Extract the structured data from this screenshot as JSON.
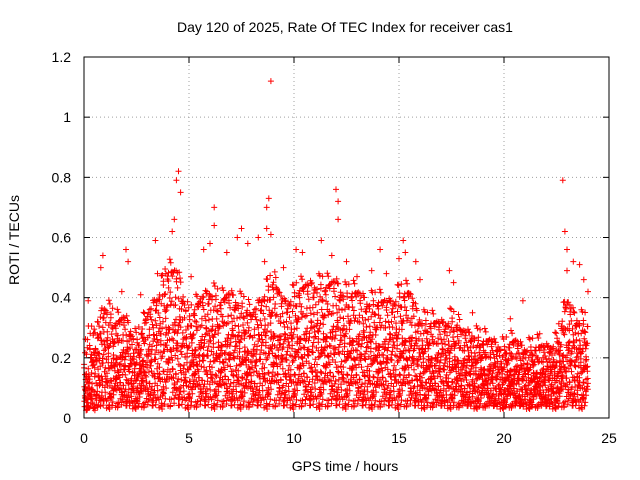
{
  "chart_data": {
    "type": "scatter",
    "title": "Day 120 of 2025, Rate Of TEC Index for receiver cas1",
    "xlabel": "GPS time / hours",
    "ylabel": "ROTI / TECUs",
    "xlim": [
      0,
      25
    ],
    "ylim": [
      0,
      1.2
    ],
    "x_ticks": [
      "0",
      "5",
      "10",
      "15",
      "20",
      "25"
    ],
    "y_ticks": [
      "0",
      "0.2",
      "0.4",
      "0.6",
      "0.8",
      "1",
      "1.2"
    ],
    "x_tick_values": [
      0,
      5,
      10,
      15,
      20,
      25
    ],
    "y_tick_values": [
      0,
      0.2,
      0.4,
      0.6,
      0.8,
      1.0,
      1.2
    ],
    "grid": true,
    "marker": "+",
    "series": [
      {
        "name": "ROTI",
        "color": "#ff0000",
        "profile_hours": [
          0,
          0.5,
          1,
          1.5,
          2,
          2.5,
          3,
          3.5,
          4,
          4.5,
          5,
          5.5,
          6,
          6.5,
          7,
          7.5,
          8,
          8.5,
          9,
          9.5,
          10,
          10.5,
          11,
          11.5,
          12,
          12.5,
          13,
          13.5,
          14,
          14.5,
          15,
          15.5,
          16,
          16.5,
          17,
          17.5,
          18,
          18.5,
          19,
          19.5,
          20,
          20.5,
          21,
          21.5,
          22,
          22.5,
          23,
          23.5,
          24
        ],
        "profile_typical_max": [
          0.25,
          0.28,
          0.35,
          0.28,
          0.3,
          0.22,
          0.3,
          0.38,
          0.45,
          0.45,
          0.3,
          0.35,
          0.4,
          0.35,
          0.38,
          0.35,
          0.3,
          0.38,
          0.42,
          0.35,
          0.38,
          0.4,
          0.42,
          0.4,
          0.42,
          0.38,
          0.38,
          0.36,
          0.35,
          0.35,
          0.38,
          0.38,
          0.3,
          0.28,
          0.28,
          0.3,
          0.25,
          0.25,
          0.22,
          0.22,
          0.2,
          0.22,
          0.2,
          0.2,
          0.2,
          0.22,
          0.35,
          0.3,
          0.28
        ],
        "peaks": [
          {
            "x": 0.2,
            "y": 0.39
          },
          {
            "x": 0.9,
            "y": 0.54
          },
          {
            "x": 0.8,
            "y": 0.5
          },
          {
            "x": 1.8,
            "y": 0.42
          },
          {
            "x": 2.0,
            "y": 0.56
          },
          {
            "x": 2.1,
            "y": 0.52
          },
          {
            "x": 2.7,
            "y": 0.41
          },
          {
            "x": 3.4,
            "y": 0.59
          },
          {
            "x": 3.5,
            "y": 0.48
          },
          {
            "x": 3.9,
            "y": 0.48
          },
          {
            "x": 4.2,
            "y": 0.62
          },
          {
            "x": 4.3,
            "y": 0.66
          },
          {
            "x": 4.4,
            "y": 0.79
          },
          {
            "x": 4.5,
            "y": 0.82
          },
          {
            "x": 4.6,
            "y": 0.75
          },
          {
            "x": 5.1,
            "y": 0.47
          },
          {
            "x": 5.7,
            "y": 0.56
          },
          {
            "x": 6.0,
            "y": 0.58
          },
          {
            "x": 6.2,
            "y": 0.7
          },
          {
            "x": 6.2,
            "y": 0.64
          },
          {
            "x": 6.8,
            "y": 0.55
          },
          {
            "x": 7.3,
            "y": 0.6
          },
          {
            "x": 7.5,
            "y": 0.63
          },
          {
            "x": 7.8,
            "y": 0.58
          },
          {
            "x": 8.3,
            "y": 0.6
          },
          {
            "x": 8.6,
            "y": 0.52
          },
          {
            "x": 8.8,
            "y": 0.73
          },
          {
            "x": 8.7,
            "y": 0.7
          },
          {
            "x": 8.9,
            "y": 0.61
          },
          {
            "x": 8.7,
            "y": 0.63
          },
          {
            "x": 9.5,
            "y": 0.5
          },
          {
            "x": 10.1,
            "y": 0.56
          },
          {
            "x": 10.4,
            "y": 0.55
          },
          {
            "x": 11.3,
            "y": 0.59
          },
          {
            "x": 11.8,
            "y": 0.54
          },
          {
            "x": 12.0,
            "y": 0.76
          },
          {
            "x": 12.1,
            "y": 0.72
          },
          {
            "x": 12.1,
            "y": 0.66
          },
          {
            "x": 12.5,
            "y": 0.52
          },
          {
            "x": 13.0,
            "y": 0.47
          },
          {
            "x": 13.7,
            "y": 0.49
          },
          {
            "x": 14.1,
            "y": 0.56
          },
          {
            "x": 14.4,
            "y": 0.48
          },
          {
            "x": 15.0,
            "y": 0.53
          },
          {
            "x": 15.2,
            "y": 0.59
          },
          {
            "x": 15.3,
            "y": 0.55
          },
          {
            "x": 15.8,
            "y": 0.52
          },
          {
            "x": 16.0,
            "y": 0.46
          },
          {
            "x": 17.4,
            "y": 0.49
          },
          {
            "x": 17.6,
            "y": 0.45
          },
          {
            "x": 18.5,
            "y": 0.35
          },
          {
            "x": 20.3,
            "y": 0.33
          },
          {
            "x": 20.9,
            "y": 0.39
          },
          {
            "x": 21.7,
            "y": 0.28
          },
          {
            "x": 22.8,
            "y": 0.79
          },
          {
            "x": 22.9,
            "y": 0.62
          },
          {
            "x": 23.0,
            "y": 0.56
          },
          {
            "x": 23.0,
            "y": 0.49
          },
          {
            "x": 23.3,
            "y": 0.52
          },
          {
            "x": 23.6,
            "y": 0.51
          },
          {
            "x": 23.8,
            "y": 0.46
          },
          {
            "x": 24.0,
            "y": 0.42
          },
          {
            "x": 8.9,
            "y": 1.12
          }
        ],
        "sample_interval_hours": 0.025,
        "points_per_sample": 4,
        "random_seed": 120
      }
    ]
  }
}
